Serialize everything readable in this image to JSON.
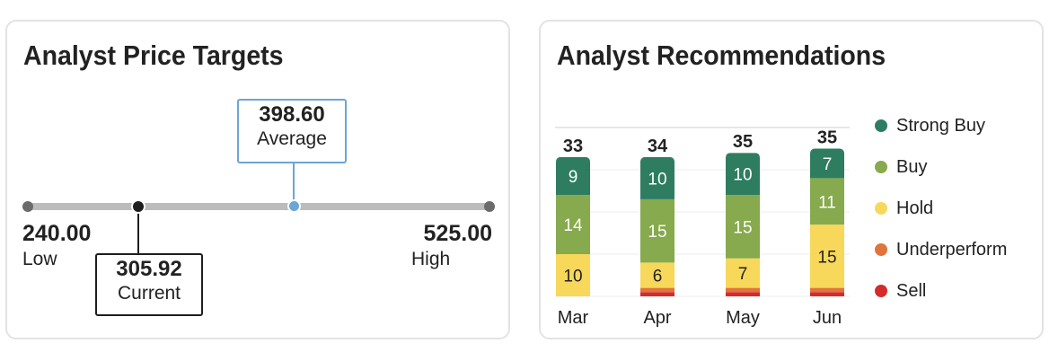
{
  "price_targets": {
    "title": "Analyst Price Targets",
    "low": {
      "value": "240.00",
      "label": "Low"
    },
    "high": {
      "value": "525.00",
      "label": "High"
    },
    "average": {
      "value": "398.60",
      "label": "Average"
    },
    "current": {
      "value": "305.92",
      "label": "Current"
    },
    "colors": {
      "track": "#bcbcbc",
      "average": "#6aa6d6",
      "current": "#1e1e1e"
    }
  },
  "recommendations": {
    "title": "Analyst Recommendations",
    "legend": [
      {
        "label": "Strong Buy",
        "color": "#2e7d61"
      },
      {
        "label": "Buy",
        "color": "#86aa4d"
      },
      {
        "label": "Hold",
        "color": "#f7d85a"
      },
      {
        "label": "Underperform",
        "color": "#e0743a"
      },
      {
        "label": "Sell",
        "color": "#d42b2b"
      }
    ]
  },
  "chart_data": {
    "type": "bar",
    "stacked": true,
    "categories": [
      "Mar",
      "Apr",
      "May",
      "Jun"
    ],
    "totals": [
      33,
      34,
      35,
      35
    ],
    "series": [
      {
        "name": "Sell",
        "values": [
          0,
          1,
          1,
          1
        ],
        "color": "#d42b2b"
      },
      {
        "name": "Underperform",
        "values": [
          0,
          1,
          1,
          1
        ],
        "color": "#e0743a"
      },
      {
        "name": "Hold",
        "values": [
          10,
          6,
          7,
          15
        ],
        "color": "#f7d85a"
      },
      {
        "name": "Buy",
        "values": [
          14,
          15,
          15,
          11
        ],
        "color": "#86aa4d"
      },
      {
        "name": "Strong Buy",
        "values": [
          9,
          10,
          10,
          7
        ],
        "color": "#2e7d61"
      }
    ],
    "grid": true,
    "legend_position": "right"
  }
}
